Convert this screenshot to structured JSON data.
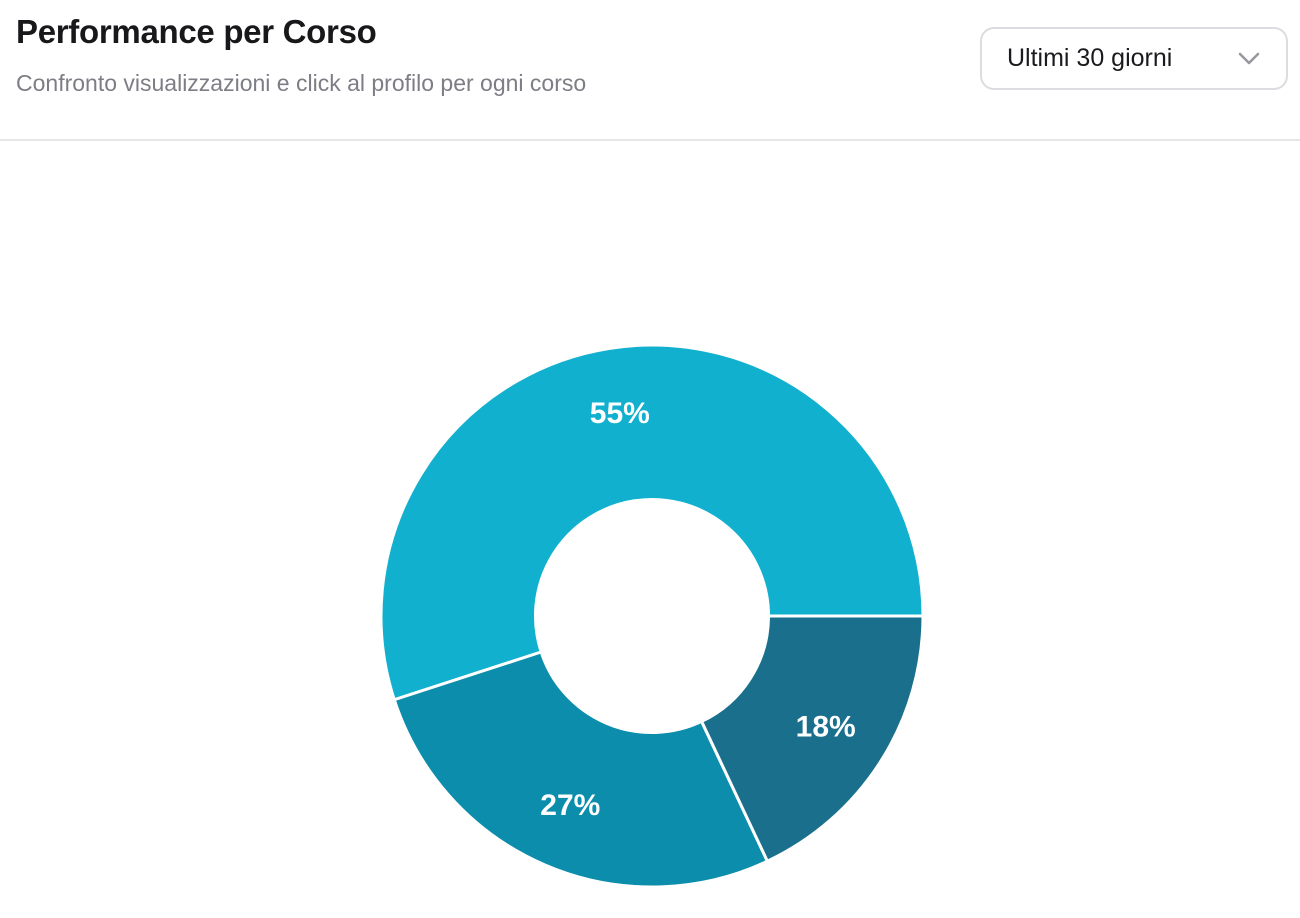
{
  "header": {
    "title": "Performance per Corso",
    "subtitle": "Confronto visualizzazioni e click al profilo per ogni corso",
    "period_selector": {
      "value": "Ultimi 30 giorni",
      "icon": "chevron-down-icon"
    }
  },
  "chart_data": {
    "type": "pie",
    "variant": "donut",
    "title": "Performance per Corso",
    "unit": "%",
    "slices": [
      {
        "label": "55%",
        "value": 55,
        "color": "#11b0ce"
      },
      {
        "label": "27%",
        "value": 27,
        "color": "#0b8dab"
      },
      {
        "label": "18%",
        "value": 18,
        "color": "#1a6f8c"
      }
    ],
    "total": 100,
    "start_angle_deg": 0,
    "direction": "counterclockwise",
    "cutout_ratio": 0.43,
    "slice_border_color": "#ffffff",
    "slice_border_width": 3,
    "label_color": "#ffffff",
    "label_font_px": 30,
    "legend": "none"
  }
}
